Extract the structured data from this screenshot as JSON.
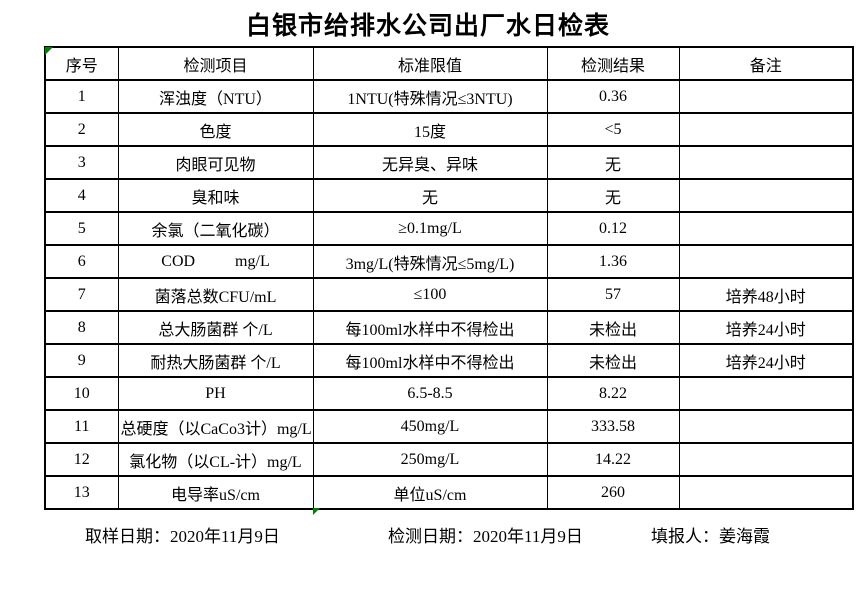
{
  "page_title": "白银市给排水公司出厂水日检表",
  "accent_colors": {
    "marker_green": "#008000",
    "border_black": "#000000",
    "background": "#ffffff"
  },
  "table": {
    "headers": [
      "序号",
      "检测项目",
      "标准限值",
      "检测结果",
      "备注"
    ],
    "rows": [
      [
        "1",
        "浑浊度（NTU）",
        "1NTU(特殊情况≤3NTU)",
        "0.36",
        ""
      ],
      [
        "2",
        "色度",
        "15度",
        "<5",
        ""
      ],
      [
        "3",
        "肉眼可见物",
        "无异臭、异味",
        "无",
        ""
      ],
      [
        "4",
        "臭和味",
        "无",
        "无",
        ""
      ],
      [
        "5",
        "余氯（二氧化碳）",
        "≥0.1mg/L",
        "0.12",
        ""
      ],
      [
        "6",
        "COD          mg/L",
        "3mg/L(特殊情况≤5mg/L)",
        "1.36",
        ""
      ],
      [
        "7",
        "菌落总数CFU/mL",
        "≤100",
        "57",
        "培养48小时"
      ],
      [
        "8",
        "总大肠菌群 个/L",
        "每100ml水样中不得检出",
        "未检出",
        "培养24小时"
      ],
      [
        "9",
        "耐热大肠菌群 个/L",
        "每100ml水样中不得检出",
        "未检出",
        "培养24小时"
      ],
      [
        "10",
        "PH",
        "6.5-8.5",
        "8.22",
        ""
      ],
      [
        "11",
        "总硬度（以CaCo3计）mg/L",
        "450mg/L",
        "333.58",
        ""
      ],
      [
        "12",
        "氯化物（以CL-计）mg/L",
        "250mg/L",
        "14.22",
        ""
      ],
      [
        "13",
        "电导率uS/cm",
        "单位uS/cm",
        "260",
        ""
      ]
    ]
  },
  "footer": {
    "items": [
      "取样日期：2020年11月9日",
      "检测日期：2020年11月9日",
      "填报人：姜海霞"
    ]
  }
}
